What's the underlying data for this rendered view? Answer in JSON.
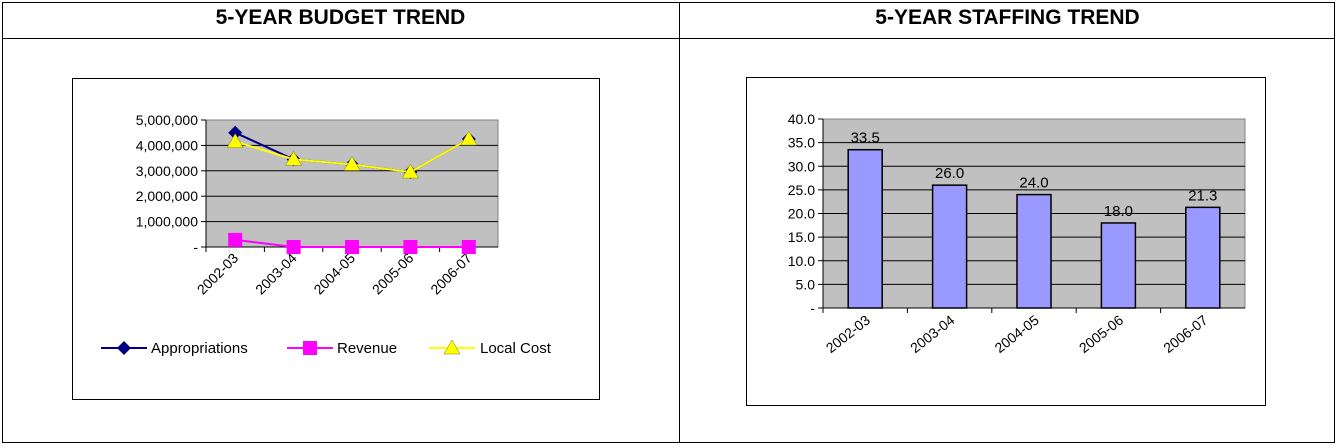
{
  "left_title": "5-YEAR BUDGET TREND",
  "right_title": "5-YEAR STAFFING TREND",
  "chart_data": [
    {
      "type": "line",
      "title": "",
      "categories": [
        "2002-03",
        "2003-04",
        "2004-05",
        "2005-06",
        "2006-07"
      ],
      "series": [
        {
          "name": "Appropriations",
          "values": [
            4500000,
            3450000,
            3250000,
            2950000,
            4250000
          ],
          "color": "#000080",
          "marker": "diamond"
        },
        {
          "name": "Revenue",
          "values": [
            280000,
            0,
            0,
            0,
            0
          ],
          "color": "#ff00ff",
          "marker": "square"
        },
        {
          "name": "Local Cost",
          "values": [
            4150000,
            3450000,
            3250000,
            2950000,
            4250000
          ],
          "color": "#ffff00",
          "marker": "triangle"
        }
      ],
      "ylim": [
        0,
        5000000
      ],
      "yticks": [
        "-",
        "1,000,000",
        "2,000,000",
        "3,000,000",
        "4,000,000",
        "5,000,000"
      ],
      "plot_bg": "#c0c0c0",
      "grid": true,
      "legend": "bottom"
    },
    {
      "type": "bar",
      "title": "",
      "categories": [
        "2002-03",
        "2003-04",
        "2004-05",
        "2005-06",
        "2006-07"
      ],
      "values": [
        33.5,
        26.0,
        24.0,
        18.0,
        21.3
      ],
      "data_labels": [
        "33.5",
        "26.0",
        "24.0",
        "18.0",
        "21.3"
      ],
      "ylim": [
        0,
        40
      ],
      "yticks": [
        "-",
        "5.0",
        "10.0",
        "15.0",
        "20.0",
        "25.0",
        "30.0",
        "35.0",
        "40.0"
      ],
      "bar_color": "#9999ff",
      "plot_bg": "#c0c0c0",
      "grid": true,
      "legend": "none"
    }
  ]
}
